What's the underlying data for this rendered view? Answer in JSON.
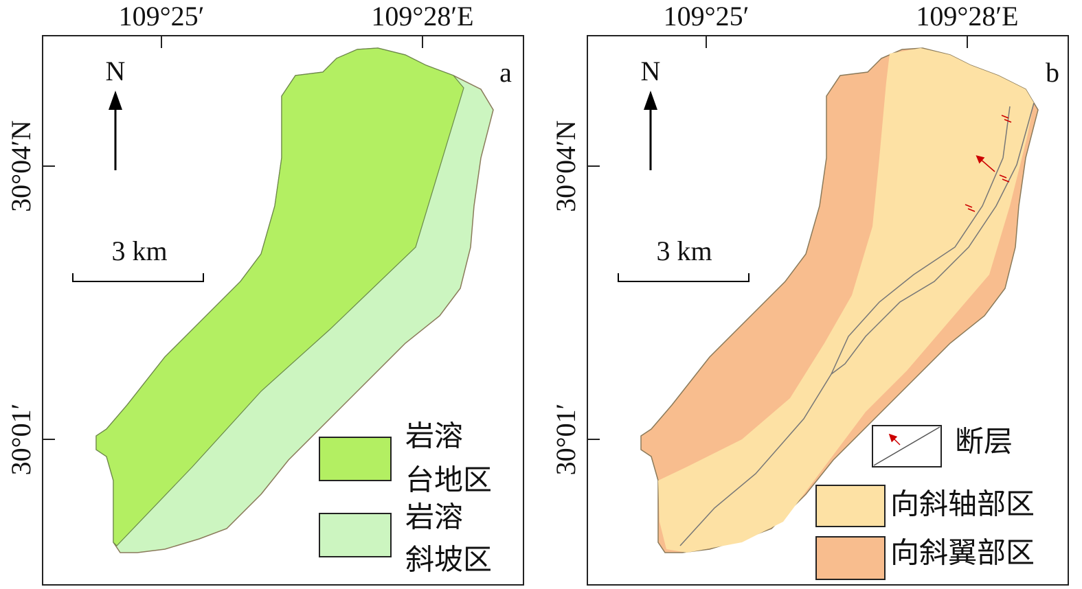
{
  "panels": [
    {
      "label": "a",
      "lon_labels": [
        "109°25′",
        "109°28′E"
      ],
      "lat_labels": [
        "30°04′N",
        "30°01′"
      ],
      "north": "N",
      "scale": "3 km",
      "legend": [
        {
          "lines": [
            "岩溶",
            "台地区"
          ]
        },
        {
          "lines": [
            "岩溶",
            "斜坡区"
          ]
        }
      ]
    },
    {
      "label": "b",
      "lon_labels": [
        "109°25′",
        "109°28′E"
      ],
      "lat_labels": [
        "30°04′N",
        "30°01′"
      ],
      "north": "N",
      "scale": "3 km",
      "legend": [
        {
          "lines": [
            "断层"
          ]
        },
        {
          "lines": [
            "向斜轴部区"
          ]
        },
        {
          "lines": [
            "向斜翼部区"
          ]
        }
      ]
    }
  ]
}
